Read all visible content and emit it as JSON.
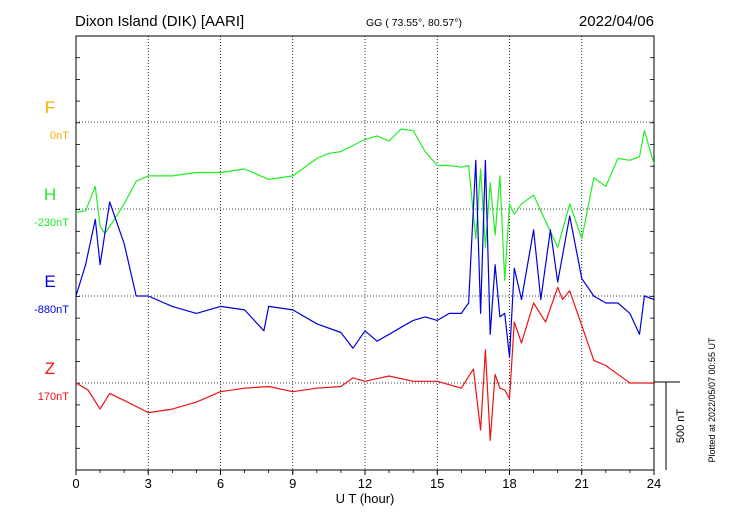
{
  "header": {
    "station": "Dixon Island (DIK)  [AARI]",
    "coords": "GG ( 73.55°,  80.57°)",
    "date": "2022/04/06"
  },
  "footer": {
    "plotted": "Plotted at 2022/05/07 00:55 UT"
  },
  "chart_data": {
    "type": "line",
    "xlabel": "U T (hour)",
    "xlim": [
      0,
      24
    ],
    "x_ticks": [
      "0",
      "3",
      "6",
      "9",
      "12",
      "15",
      "18",
      "21",
      "24"
    ],
    "scale_label": "500 nT",
    "grid": true,
    "series": [
      {
        "name": "F",
        "baseline_label": "0nT",
        "color": "#ffaa00",
        "x": [],
        "y": []
      },
      {
        "name": "H",
        "baseline_label": "-230nT",
        "color": "#22ee22",
        "x": [
          0,
          0.4,
          0.8,
          1.0,
          1.2,
          1.5,
          2.0,
          2.5,
          3,
          4,
          5,
          6,
          7,
          8,
          9,
          10,
          10.5,
          11,
          12,
          12.5,
          13,
          13.5,
          14,
          14.5,
          15,
          15.5,
          16,
          16.3,
          16.6,
          16.8,
          17.0,
          17.2,
          17.4,
          17.6,
          17.8,
          18.0,
          18.2,
          18.5,
          19.0,
          19.5,
          20.0,
          20.5,
          21.0,
          21.5,
          22,
          22.5,
          23,
          23.4,
          23.6,
          24
        ],
        "y": [
          -250,
          -240,
          -100,
          -330,
          -370,
          -310,
          -200,
          -70,
          -40,
          -40,
          -20,
          -20,
          0,
          -60,
          -40,
          60,
          90,
          100,
          170,
          190,
          160,
          230,
          220,
          100,
          20,
          20,
          10,
          20,
          -400,
          0,
          -450,
          -80,
          -380,
          -40,
          -640,
          -200,
          -260,
          -200,
          -150,
          -300,
          -450,
          -200,
          -400,
          -50,
          -100,
          60,
          50,
          70,
          220,
          30
        ],
        "range": [
          -640,
          230
        ]
      },
      {
        "name": "E",
        "baseline_label": "-880nT",
        "color": "#0000dd",
        "x": [
          0,
          0.4,
          0.8,
          1.0,
          1.4,
          2.0,
          2.5,
          3,
          4,
          5,
          6,
          7,
          7.8,
          8,
          9,
          10,
          11,
          11.5,
          12,
          12.5,
          13,
          13.5,
          14,
          14.5,
          15,
          15.5,
          16,
          16.3,
          16.6,
          16.8,
          17.0,
          17.2,
          17.4,
          17.6,
          17.8,
          18.0,
          18.2,
          18.5,
          19.0,
          19.3,
          19.7,
          20.0,
          20.5,
          21,
          21.5,
          22,
          22.5,
          23,
          23.4,
          23.6,
          24
        ],
        "y": [
          -880,
          -700,
          -440,
          -700,
          -340,
          -580,
          -880,
          -880,
          -940,
          -980,
          -940,
          -960,
          -1080,
          -940,
          -960,
          -1040,
          -1090,
          -1180,
          -1080,
          -1140,
          -1100,
          -1060,
          -1020,
          -1000,
          -1020,
          -980,
          -980,
          -920,
          -100,
          -980,
          -100,
          -1100,
          -700,
          -1000,
          -980,
          -1230,
          -720,
          -900,
          -500,
          -900,
          -500,
          -800,
          -420,
          -780,
          -880,
          -920,
          -920,
          -980,
          -1100,
          -880,
          -900
        ],
        "range": [
          -1230,
          -100
        ]
      },
      {
        "name": "Z",
        "baseline_label": "170nT",
        "color": "#ee1111",
        "x": [
          0,
          0.5,
          1.0,
          1.4,
          2,
          3,
          4,
          5,
          6,
          7,
          8,
          9,
          10,
          11,
          11.5,
          12,
          13,
          14,
          15,
          16,
          16.5,
          16.8,
          17.0,
          17.2,
          17.4,
          17.6,
          17.8,
          18.0,
          18.2,
          18.5,
          19.0,
          19.5,
          20,
          20.2,
          20.5,
          21,
          21.5,
          22,
          22.5,
          23,
          24
        ],
        "y": [
          170,
          130,
          20,
          110,
          70,
          0,
          20,
          60,
          120,
          140,
          150,
          120,
          140,
          150,
          200,
          180,
          210,
          180,
          180,
          140,
          250,
          -100,
          360,
          -160,
          220,
          140,
          130,
          80,
          520,
          400,
          630,
          520,
          720,
          650,
          700,
          500,
          300,
          270,
          220,
          170,
          170
        ],
        "range": [
          -160,
          720
        ]
      }
    ]
  }
}
